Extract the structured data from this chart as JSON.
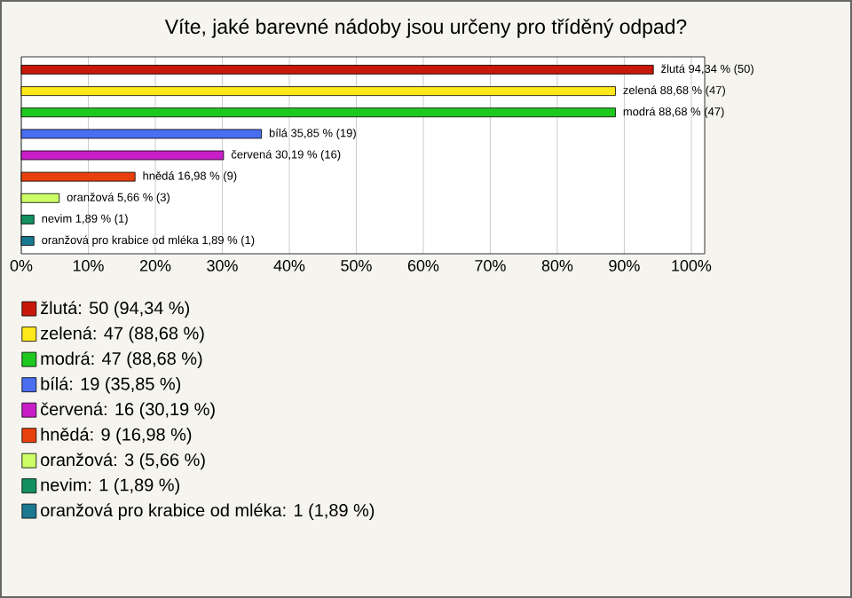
{
  "chart_data": {
    "type": "bar",
    "orientation": "horizontal",
    "title": "Víte, jaké barevné nádoby jsou určeny pro tříděný odpad?",
    "categories": [
      null,
      null,
      null,
      null,
      null,
      null,
      null,
      null,
      null
    ],
    "series": [
      {
        "name": "žlutá: 50 (94,34 %)",
        "color": "#c8180c",
        "values": [
          94.34,
          null,
          null,
          null,
          null,
          null,
          null,
          null,
          null
        ],
        "value_labels": [
          "žlutá 94,34 % (50)",
          null,
          null,
          null,
          null,
          null,
          null,
          null,
          null
        ]
      },
      {
        "name": "zelená: 47 (88,68 %)",
        "color": "#ffe81a",
        "values": [
          null,
          88.68,
          null,
          null,
          null,
          null,
          null,
          null,
          null
        ],
        "value_labels": [
          null,
          "zelená 88,68 % (47)",
          null,
          null,
          null,
          null,
          null,
          null,
          null
        ]
      },
      {
        "name": "modrá: 47 (88,68 %)",
        "color": "#1ec81e",
        "values": [
          null,
          null,
          88.68,
          null,
          null,
          null,
          null,
          null,
          null
        ],
        "value_labels": [
          null,
          null,
          "modrá 88,68 % (47)",
          null,
          null,
          null,
          null,
          null,
          null
        ]
      },
      {
        "name": "bílá: 19 (35,85 %)",
        "color": "#4a6ef0",
        "values": [
          null,
          null,
          null,
          35.85,
          null,
          null,
          null,
          null,
          null
        ],
        "value_labels": [
          null,
          null,
          null,
          "bílá 35,85 % (19)",
          null,
          null,
          null,
          null,
          null
        ]
      },
      {
        "name": "červená: 16 (30,19 %)",
        "color": "#c81ec8",
        "values": [
          null,
          null,
          null,
          null,
          30.19,
          null,
          null,
          null,
          null
        ],
        "value_labels": [
          null,
          null,
          null,
          null,
          "červená 30,19 % (16)",
          null,
          null,
          null,
          null
        ]
      },
      {
        "name": "hnědá: 9 (16,98 %)",
        "color": "#e8400c",
        "values": [
          null,
          null,
          null,
          null,
          null,
          16.98,
          null,
          null,
          null
        ],
        "value_labels": [
          null,
          null,
          null,
          null,
          null,
          "hnědá 16,98 % (9)",
          null,
          null,
          null
        ]
      },
      {
        "name": "oranžová: 3 (5,66 %)",
        "color": "#ccff66",
        "values": [
          null,
          null,
          null,
          null,
          null,
          null,
          5.66,
          null,
          null
        ],
        "value_labels": [
          null,
          null,
          null,
          null,
          null,
          null,
          "oranžová 5,66 % (3)",
          null,
          null
        ]
      },
      {
        "name": "nevim: 1 (1,89 %)",
        "color": "#129060",
        "values": [
          null,
          null,
          null,
          null,
          null,
          null,
          null,
          1.89,
          null
        ],
        "value_labels": [
          null,
          null,
          null,
          null,
          null,
          null,
          null,
          "nevim 1,89 % (1)",
          null
        ]
      },
      {
        "name": "oranžová pro krabice od mléka: 1 (1,89 %)",
        "color": "#1a7890",
        "values": [
          null,
          null,
          null,
          null,
          null,
          null,
          null,
          null,
          1.89
        ],
        "value_labels": [
          null,
          null,
          null,
          null,
          null,
          null,
          null,
          null,
          "oranžová pro krabice od mléka 1,89 % (1)"
        ]
      }
    ],
    "xlim": [
      0,
      102
    ],
    "xticks": [
      {
        "value": 0,
        "label": "0%"
      },
      {
        "value": 10,
        "label": "10%"
      },
      {
        "value": 20,
        "label": "20%"
      },
      {
        "value": 30,
        "label": "30%"
      },
      {
        "value": 40,
        "label": "40%"
      },
      {
        "value": 50,
        "label": "50%"
      },
      {
        "value": 60,
        "label": "60%"
      },
      {
        "value": 70,
        "label": "70%"
      },
      {
        "value": 80,
        "label": "80%"
      },
      {
        "value": 90,
        "label": "90%"
      },
      {
        "value": 100,
        "label": "100%"
      }
    ],
    "grid": "x",
    "legend": "bottom"
  }
}
